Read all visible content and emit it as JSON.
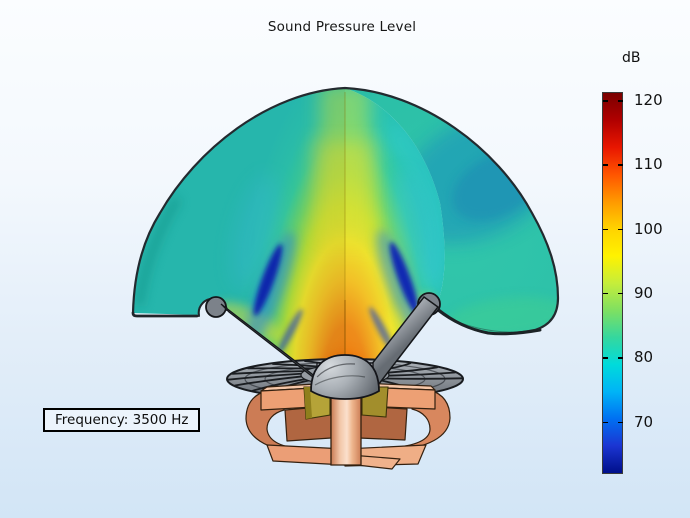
{
  "title": "Sound Pressure Level",
  "colorbar": {
    "unit": "dB",
    "tick_labels": [
      "120",
      "110",
      "100",
      "90",
      "80",
      "70"
    ],
    "gradient_stops": [
      "#7a0000",
      "#b00000",
      "#e81600",
      "#ff5500",
      "#ff9900",
      "#ffd300",
      "#fff200",
      "#c6ee3a",
      "#7fe061",
      "#35d79e",
      "#00dbdb",
      "#00b4f6",
      "#0070f2",
      "#1b35d2",
      "#000f8a"
    ]
  },
  "annotation": {
    "text": "Frequency: 3500 Hz"
  },
  "colors": {
    "background_top": "#fbfdff",
    "background_bottom": "#d2e5f6",
    "shell_teal": "#2cc0a8",
    "beam_orange": "#ee8a1a",
    "null_blue": "#0b24b4",
    "magnet_copper": "#eda074",
    "driver_gray": "#8a9098"
  },
  "chart_data": {
    "type": "heatmap",
    "title": "Sound Pressure Level",
    "unit": "dB",
    "colormap": "rainbow",
    "colorbar_ticks": [
      120,
      110,
      100,
      90,
      80,
      70
    ],
    "colorbar_range_approx": [
      62,
      121
    ],
    "annotation": "Frequency: 3500 Hz",
    "scene_description": "3D cut-away hemispherical air domain above a loudspeaker driver showing the radiated sound pressure level field at 3500 Hz; a quarter wedge is removed at the front to reveal the interior field on two cut planes",
    "features": [
      {
        "name": "on-axis main lobe (center beam)",
        "approx_spl_dB": 105,
        "color": "orange"
      },
      {
        "name": "near-cone region at source",
        "approx_spl_dB": 112,
        "color": "red-orange"
      },
      {
        "name": "side-lobe null streaks ~40 deg off axis",
        "approx_spl_dB": 67,
        "color": "dark blue"
      },
      {
        "name": "mid-angle field",
        "approx_spl_dB": 96,
        "color": "yellow-green"
      },
      {
        "name": "outer hemisphere shell surface",
        "approx_spl_dB": 88,
        "color": "teal-green"
      },
      {
        "name": "upper-right shell patch",
        "approx_spl_dB": 82,
        "color": "blue-teal"
      }
    ]
  }
}
